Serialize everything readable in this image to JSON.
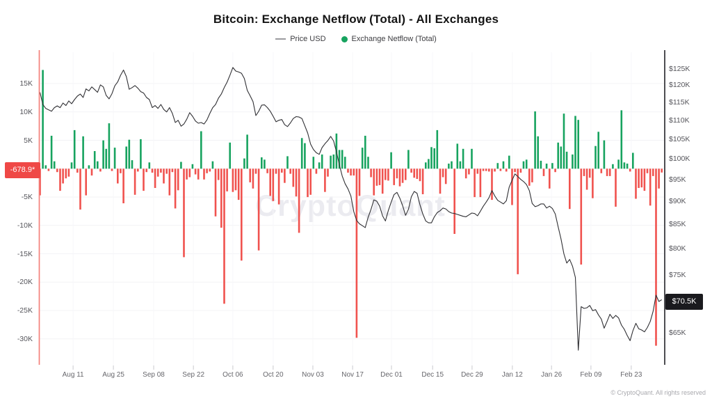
{
  "title": "Bitcoin: Exchange Netflow (Total) - All Exchanges",
  "legend": [
    {
      "label": "Price USD",
      "type": "line",
      "color": "#9a9a9e"
    },
    {
      "label": "Exchange Netflow (Total)",
      "type": "dot",
      "color": "#17a35f"
    }
  ],
  "watermark": "CryptoQuant",
  "copyright": "© CryptoQuant. All rights reserved",
  "badges": {
    "netflow_current": {
      "text": "-678.9*",
      "value_btc": -678.9,
      "color": "#ef4846"
    },
    "price_current": {
      "text": "$70.5K",
      "value_usd_k": 70.5,
      "color": "#1a1a1e"
    }
  },
  "colors": {
    "netflow_positive": "#17a35f",
    "netflow_negative": "#f0524e",
    "price_line": "#303034",
    "left_axis_line": "#f4817b",
    "right_axis_line": "#2e2e33",
    "gridline": "#f3f3f6"
  },
  "axes": {
    "left": {
      "unit": "K BTC",
      "ticks": [
        {
          "label": "15K",
          "value": 15
        },
        {
          "label": "10K",
          "value": 10
        },
        {
          "label": "5K",
          "value": 5
        },
        {
          "label": "-5K",
          "value": -5
        },
        {
          "label": "-10K",
          "value": -10
        },
        {
          "label": "-15K",
          "value": -15
        },
        {
          "label": "-20K",
          "value": -20
        },
        {
          "label": "-25K",
          "value": -25
        },
        {
          "label": "-30K",
          "value": -30
        }
      ]
    },
    "right": {
      "unit": "USD",
      "scale": "log",
      "ticks": [
        {
          "label": "$125K",
          "value": 125
        },
        {
          "label": "$120K",
          "value": 120
        },
        {
          "label": "$115K",
          "value": 115
        },
        {
          "label": "$110K",
          "value": 110
        },
        {
          "label": "$105K",
          "value": 105
        },
        {
          "label": "$100K",
          "value": 100
        },
        {
          "label": "$95K",
          "value": 95
        },
        {
          "label": "$90K",
          "value": 90
        },
        {
          "label": "$85K",
          "value": 85
        },
        {
          "label": "$80K",
          "value": 80
        },
        {
          "label": "$75K",
          "value": 75
        },
        {
          "label": "$65K",
          "value": 65
        }
      ]
    },
    "x": {
      "ticks": [
        {
          "label": "Aug 11",
          "day": 11.5
        },
        {
          "label": "Aug 25",
          "day": 25.5
        },
        {
          "label": "Sep 08",
          "day": 39.5
        },
        {
          "label": "Sep 22",
          "day": 53.3
        },
        {
          "label": "Oct 06",
          "day": 67.0
        },
        {
          "label": "Oct 20",
          "day": 81.0
        },
        {
          "label": "Nov 03",
          "day": 94.8
        },
        {
          "label": "Nov 17",
          "day": 108.6
        },
        {
          "label": "Dec 01",
          "day": 122.1
        },
        {
          "label": "Dec 15",
          "day": 136.4
        },
        {
          "label": "Dec 29",
          "day": 150.1
        },
        {
          "label": "Jan 12",
          "day": 164.1
        },
        {
          "label": "Jan 26",
          "day": 177.7
        },
        {
          "label": "Feb 09",
          "day": 191.4
        },
        {
          "label": "Feb 23",
          "day": 205.4
        }
      ]
    }
  },
  "chart_data": {
    "type": "bar+line",
    "x_unit": "day index (daily data, ~Aug 01 through Feb/Mar)",
    "num_days": 217,
    "netflow_latest_btc": -678.9,
    "price_latest_usd_k": 70.5,
    "ylim_left_k_btc": [
      -32.5,
      19
    ],
    "ylim_right_usd_k": [
      60,
      128
    ],
    "right_scale": "log",
    "series": [
      {
        "name": "Exchange Netflow (Total)",
        "type": "bar",
        "unit": "K BTC",
        "values": [
          -4.7,
          17.4,
          0.6,
          -0.4,
          5.8,
          1.3,
          -0.6,
          -3.9,
          -2.6,
          -1.7,
          -1.4,
          1.1,
          6.8,
          -0.7,
          -7.2,
          5.7,
          -4.7,
          0.6,
          -1.2,
          3.1,
          1.3,
          -0.5,
          5.0,
          3.5,
          8.0,
          -0.4,
          3.7,
          -2.6,
          -0.8,
          -6.1,
          3.9,
          5.1,
          1.5,
          -4.6,
          -0.5,
          5.2,
          -3.9,
          -0.6,
          1.1,
          -0.7,
          -3.4,
          -1.4,
          -0.7,
          -2.6,
          -0.9,
          -4.7,
          -0.6,
          -7.0,
          -3.8,
          1.2,
          -15.6,
          -1.9,
          -1.5,
          0.8,
          -1.0,
          -1.9,
          6.6,
          -1.9,
          -0.8,
          -0.5,
          1.3,
          -8.4,
          -2.0,
          -10.4,
          -23.8,
          -4.0,
          4.6,
          -4.1,
          -3.8,
          -5.5,
          -16.2,
          1.8,
          6.0,
          -2.4,
          -3.5,
          -0.9,
          -14.4,
          2.0,
          1.6,
          -0.8,
          -4.8,
          -5.7,
          -0.9,
          -6.3,
          -0.7,
          -2.5,
          2.2,
          -0.9,
          -3.2,
          -4.9,
          -11.3,
          5.4,
          4.5,
          -5.0,
          -4.6,
          2.1,
          -0.9,
          1.1,
          2.5,
          -4.1,
          -1.4,
          2.3,
          2.5,
          6.2,
          3.3,
          3.3,
          2.1,
          -0.7,
          -1.2,
          -1.2,
          -29.8,
          -4.8,
          3.7,
          5.8,
          2.1,
          -1.5,
          -4.7,
          -3.0,
          -2.9,
          -4.4,
          -2.0,
          -2.1,
          2.9,
          -2.9,
          -1.7,
          -3.1,
          -2.5,
          -2.0,
          3.3,
          -0.7,
          -1.6,
          -1.8,
          -2.2,
          -4.5,
          1.1,
          1.7,
          3.8,
          3.6,
          6.8,
          -4.4,
          -1.5,
          -2.7,
          0.9,
          1.3,
          -11.5,
          4.4,
          1.3,
          3.5,
          -1.7,
          -1.0,
          3.5,
          -5.0,
          -0.9,
          -5.0,
          -0.4,
          -0.4,
          -0.5,
          -5.5,
          -0.5,
          1.0,
          -0.4,
          1.3,
          -0.5,
          2.3,
          -6.4,
          -0.6,
          -18.6,
          -0.7,
          1.3,
          1.6,
          -3.0,
          -2.4,
          10.1,
          5.7,
          1.4,
          -1.3,
          0.9,
          -3.5,
          1.0,
          -0.6,
          4.6,
          3.9,
          9.7,
          3.0,
          -7.1,
          2.5,
          9.3,
          8.6,
          -16.9,
          -1.3,
          -3.7,
          -1.6,
          -5.2,
          4.0,
          6.5,
          -0.8,
          5.0,
          -1.3,
          -1.3,
          0.8,
          -6.7,
          1.6,
          10.3,
          1.1,
          0.9,
          -0.5,
          2.8,
          -5.3,
          -3.4,
          -3.3,
          -3.9,
          -0.8,
          -6.5,
          -1.3,
          -31.2,
          -3.5,
          -0.679
        ]
      },
      {
        "name": "Price USD",
        "type": "line",
        "unit": "K USD",
        "values": [
          117.9,
          114.4,
          113.3,
          112.9,
          112.5,
          113.5,
          114.0,
          113.5,
          114.8,
          114.1,
          115.4,
          114.6,
          115.8,
          116.8,
          117.4,
          116.4,
          118.9,
          118.3,
          119.5,
          118.7,
          117.9,
          120.1,
          119.5,
          117.0,
          116.0,
          117.5,
          119.8,
          121.0,
          123.0,
          124.6,
          122.6,
          118.8,
          119.3,
          119.9,
          119.1,
          118.1,
          117.7,
          116.4,
          115.8,
          113.5,
          114.1,
          113.3,
          114.4,
          113.0,
          112.3,
          113.5,
          111.9,
          109.4,
          110.0,
          108.4,
          109.0,
          110.3,
          112.1,
          111.1,
          109.8,
          109.2,
          109.4,
          109.0,
          110.1,
          111.9,
          113.5,
          114.4,
          116.2,
          117.4,
          119.3,
          120.9,
          123.0,
          125.4,
          124.3,
          124.0,
          123.6,
          122.0,
          118.5,
          116.9,
          115.2,
          111.3,
          112.5,
          114.2,
          114.3,
          113.5,
          112.5,
          111.1,
          109.6,
          110.0,
          110.2,
          108.8,
          108.3,
          109.3,
          110.5,
          111.0,
          110.9,
          110.5,
          108.5,
          106.6,
          103.7,
          102.3,
          101.5,
          101.1,
          102.8,
          103.8,
          104.6,
          105.7,
          104.5,
          101.7,
          98.5,
          95.8,
          94.0,
          92.8,
          91.2,
          87.7,
          85.8,
          85.1,
          84.7,
          84.3,
          86.5,
          88.2,
          90.3,
          90.0,
          88.9,
          86.8,
          85.7,
          87.9,
          89.8,
          91.5,
          92.0,
          90.7,
          89.0,
          86.9,
          88.2,
          91.0,
          92.2,
          91.8,
          89.2,
          87.2,
          85.7,
          85.3,
          85.3,
          86.6,
          87.5,
          87.9,
          88.5,
          88.3,
          87.7,
          87.4,
          87.3,
          87.1,
          86.9,
          86.7,
          86.6,
          87.0,
          87.4,
          87.3,
          86.8,
          87.8,
          88.9,
          89.8,
          90.8,
          92.4,
          91.2,
          90.2,
          89.8,
          89.4,
          90.1,
          93.2,
          94.8,
          96.3,
          95.7,
          95.0,
          94.5,
          93.8,
          92.4,
          89.5,
          88.8,
          89.0,
          89.4,
          89.4,
          88.5,
          88.9,
          88.4,
          87.2,
          84.5,
          82.0,
          79.0,
          77.2,
          77.9,
          76.6,
          74.5,
          62.2,
          69.3,
          69.0,
          69.1,
          69.5,
          68.6,
          68.8,
          67.9,
          67.2,
          65.7,
          66.8,
          68.0,
          67.3,
          67.8,
          67.4,
          66.2,
          65.5,
          64.5,
          63.7,
          65.3,
          66.5,
          65.6,
          65.4,
          65.1,
          65.8,
          66.8,
          68.5,
          71.3,
          70.2,
          70.5
        ]
      }
    ]
  }
}
